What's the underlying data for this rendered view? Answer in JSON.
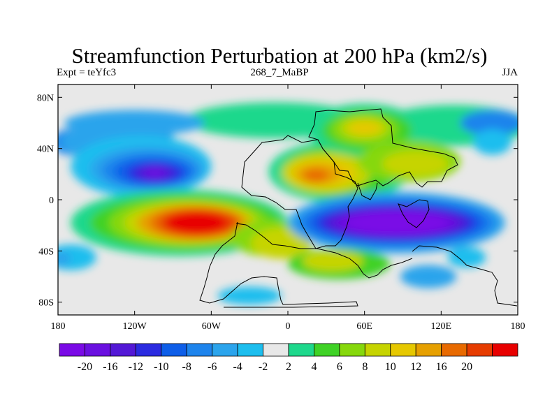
{
  "header": {
    "title": "Streamfunction Perturbation at 200 hPa (km2/s)",
    "left": "Expt = teYfc3",
    "center": "268_7_MaBP",
    "right": "JJA"
  },
  "chart_data": {
    "type": "heatmap",
    "title": "Streamfunction Perturbation at 200 hPa (km2/s)",
    "subtitle_left": "Expt = teYfc3",
    "subtitle_center": "268_7_MaBP",
    "subtitle_right": "JJA",
    "xlim": [
      -180,
      180
    ],
    "ylim": [
      -90,
      90
    ],
    "x_ticks": [
      {
        "value": -180,
        "label": "180"
      },
      {
        "value": -120,
        "label": "120W"
      },
      {
        "value": -60,
        "label": "60W"
      },
      {
        "value": 0,
        "label": "0"
      },
      {
        "value": 60,
        "label": "60E"
      },
      {
        "value": 120,
        "label": "120E"
      },
      {
        "value": 180,
        "label": "180"
      }
    ],
    "y_ticks": [
      {
        "value": 80,
        "label": "80N"
      },
      {
        "value": 40,
        "label": "40N"
      },
      {
        "value": 0,
        "label": "0"
      },
      {
        "value": -40,
        "label": "40S"
      },
      {
        "value": -80,
        "label": "80S"
      }
    ],
    "colorbar": {
      "colors": [
        "#7a0ae6",
        "#6a10e0",
        "#5318d6",
        "#2b2be0",
        "#0e5ee8",
        "#1e84ec",
        "#2ba4ec",
        "#1dbeee",
        "#e8e8e8",
        "#1ed88c",
        "#3fd226",
        "#86d80c",
        "#c6d400",
        "#e6c800",
        "#e6a000",
        "#e86a00",
        "#e63c00",
        "#e80000"
      ],
      "labels": [
        "-20",
        "-16",
        "-12",
        "-10",
        "-8",
        "-6",
        "-4",
        "-2",
        "2",
        "4",
        "6",
        "8",
        "10",
        "12",
        "16",
        "20"
      ]
    },
    "features": [
      {
        "name": "west-pacific-low",
        "lon": -105,
        "lat": 22,
        "intensity": -15
      },
      {
        "name": "south-atlantic-high",
        "lon": -72,
        "lat": -18,
        "intensity": 22
      },
      {
        "name": "indian-ocean-low",
        "lon": 85,
        "lat": -18,
        "intensity": -19
      },
      {
        "name": "north-africa-high",
        "lon": 25,
        "lat": 20,
        "intensity": 13
      },
      {
        "name": "siberia-high",
        "lon": 60,
        "lat": 55,
        "intensity": 12
      },
      {
        "name": "tibet-high",
        "lon": 98,
        "lat": 28,
        "intensity": 10
      }
    ]
  }
}
